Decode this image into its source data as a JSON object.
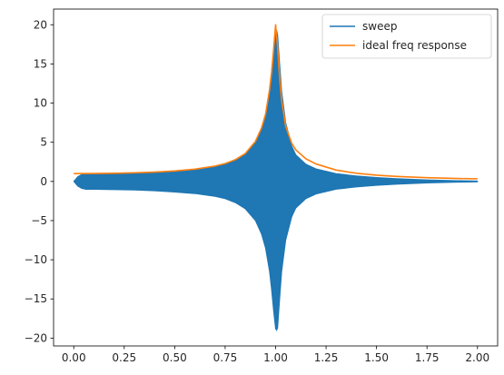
{
  "chart_data": {
    "type": "line",
    "title": "",
    "xlabel": "",
    "ylabel": "",
    "xlim": [
      -0.1,
      2.1
    ],
    "ylim": [
      -21,
      22
    ],
    "xticks": [
      0.0,
      0.25,
      0.5,
      0.75,
      1.0,
      1.25,
      1.5,
      1.75,
      2.0
    ],
    "xtick_labels": [
      "0.00",
      "0.25",
      "0.50",
      "0.75",
      "1.00",
      "1.25",
      "1.50",
      "1.75",
      "2.00"
    ],
    "yticks": [
      -20,
      -15,
      -10,
      -5,
      0,
      5,
      10,
      15,
      20
    ],
    "ytick_labels": [
      "−20",
      "−15",
      "−10",
      "−5",
      "0",
      "5",
      "10",
      "15",
      "20"
    ],
    "grid": false,
    "legend_position": "top-right",
    "series": [
      {
        "name": "sweep",
        "color": "#1f77b4",
        "kind": "oscillating envelope (filled band)",
        "x": [
          0.0,
          0.02,
          0.04,
          0.06,
          0.1,
          0.2,
          0.3,
          0.4,
          0.5,
          0.6,
          0.7,
          0.75,
          0.8,
          0.85,
          0.9,
          0.93,
          0.95,
          0.97,
          0.98,
          0.99,
          1.0,
          1.005,
          1.01,
          1.02,
          1.03,
          1.05,
          1.08,
          1.1,
          1.15,
          1.2,
          1.3,
          1.4,
          1.5,
          1.6,
          1.75,
          1.9,
          2.0
        ],
        "upper": [
          0.0,
          0.6,
          0.9,
          1.0,
          1.0,
          1.05,
          1.1,
          1.2,
          1.35,
          1.55,
          1.9,
          2.2,
          2.7,
          3.5,
          5.0,
          6.7,
          8.5,
          11.5,
          13.8,
          16.5,
          18.8,
          19.3,
          18.7,
          15.0,
          11.5,
          7.5,
          4.5,
          3.4,
          2.2,
          1.6,
          1.0,
          0.7,
          0.5,
          0.35,
          0.2,
          0.1,
          0.05
        ],
        "lower": [
          0.0,
          -0.6,
          -0.9,
          -1.0,
          -1.0,
          -1.05,
          -1.1,
          -1.2,
          -1.35,
          -1.55,
          -1.9,
          -2.2,
          -2.7,
          -3.5,
          -5.0,
          -6.7,
          -8.5,
          -11.5,
          -13.8,
          -16.5,
          -18.8,
          -19.0,
          -18.7,
          -15.0,
          -11.5,
          -7.5,
          -4.5,
          -3.4,
          -2.2,
          -1.6,
          -1.0,
          -0.7,
          -0.5,
          -0.35,
          -0.2,
          -0.1,
          -0.05
        ]
      },
      {
        "name": "ideal freq response",
        "color": "#ff7f0e",
        "x": [
          0.0,
          0.1,
          0.2,
          0.3,
          0.4,
          0.5,
          0.6,
          0.7,
          0.75,
          0.8,
          0.85,
          0.9,
          0.93,
          0.95,
          0.97,
          0.98,
          0.99,
          1.0,
          1.01,
          1.02,
          1.03,
          1.05,
          1.08,
          1.1,
          1.15,
          1.2,
          1.3,
          1.4,
          1.5,
          1.6,
          1.75,
          1.9,
          2.0
        ],
        "y": [
          1.0,
          1.01,
          1.04,
          1.1,
          1.19,
          1.33,
          1.56,
          1.96,
          2.28,
          2.77,
          3.57,
          5.11,
          6.81,
          8.56,
          11.7,
          13.9,
          16.8,
          20.0,
          17.1,
          13.2,
          10.3,
          7.03,
          4.85,
          4.03,
          2.89,
          2.23,
          1.45,
          1.04,
          0.8,
          0.64,
          0.48,
          0.38,
          0.33
        ]
      }
    ]
  }
}
